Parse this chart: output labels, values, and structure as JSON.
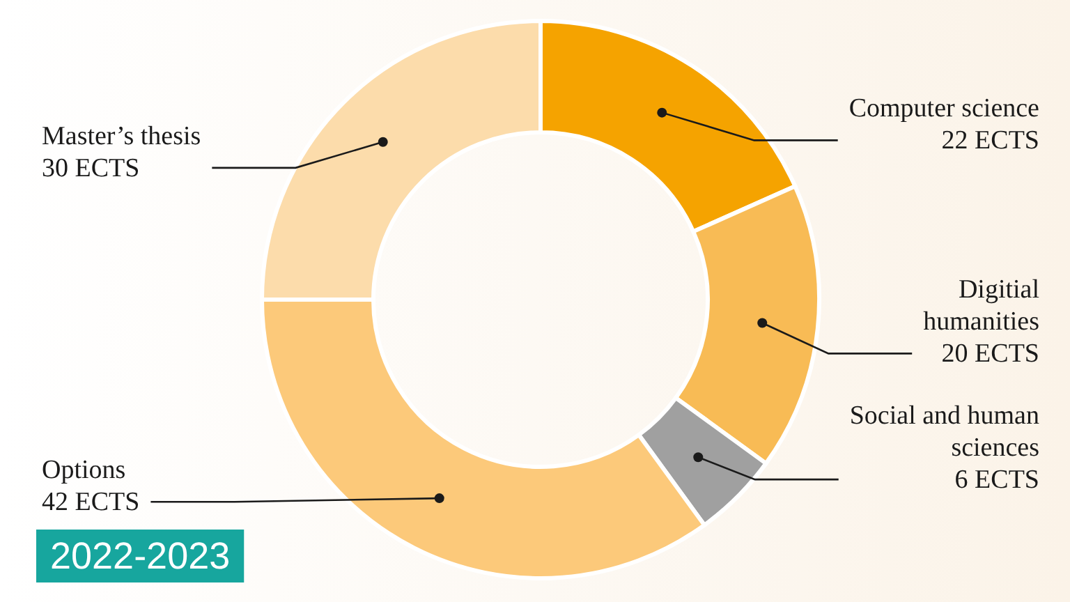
{
  "chart_data": {
    "type": "donut",
    "categories": [
      "Computer science",
      "Digitial humanities",
      "Social and human sciences",
      "Options",
      "Master’s thesis"
    ],
    "values": [
      22,
      20,
      6,
      42,
      30
    ],
    "value_labels": [
      "22 ECTS",
      "20 ECTS",
      "6 ECTS",
      "42 ECTS",
      "30 ECTS"
    ],
    "colors": [
      "#f5a300",
      "#f8bb55",
      "#a0a0a0",
      "#fcc97a",
      "#fcdcab"
    ],
    "annotations": [
      "2022-2023"
    ]
  }
}
